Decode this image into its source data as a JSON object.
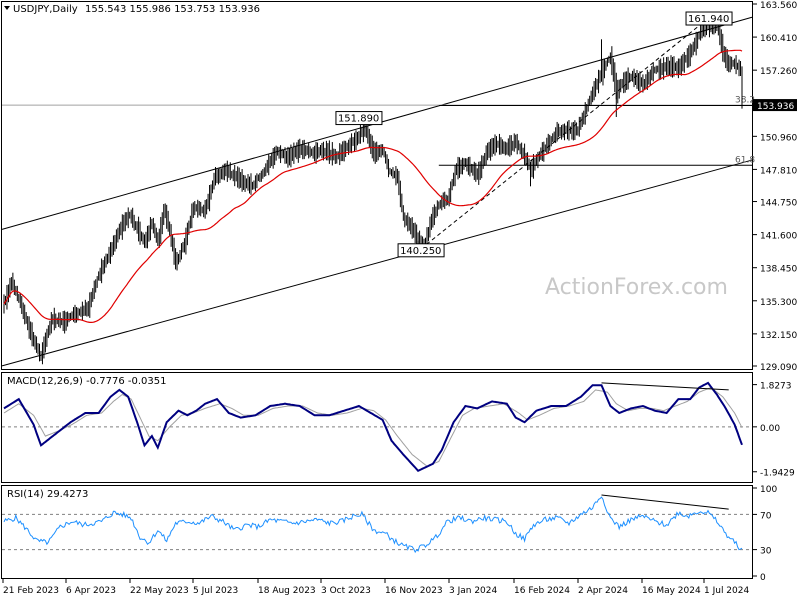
{
  "header": {
    "symbol": "USDJPY,Daily",
    "ohlc": "155.543 155.986 153.753 153.936"
  },
  "watermark": "ActionForex.com",
  "colors": {
    "price_bar": "#000000",
    "ma": "#e00000",
    "macd": "#000080",
    "macd_signal": "#a0a0a0",
    "rsi": "#1e90ff",
    "trend": "#000000",
    "grid_dotted": "#808080"
  },
  "chart_data": [
    {
      "type": "ohlc",
      "panel": "price",
      "title": "USDJPY,Daily",
      "y_ticks": [
        "163.560",
        "160.410",
        "157.260",
        "154.110",
        "150.960",
        "147.810",
        "144.750",
        "141.600",
        "138.450",
        "135.300",
        "132.150",
        "129.090"
      ],
      "y_tick_values": [
        163.56,
        160.41,
        157.26,
        154.11,
        150.96,
        147.81,
        144.75,
        141.6,
        138.45,
        135.3,
        132.15,
        129.09
      ],
      "ylim": [
        129.09,
        163.56
      ],
      "x_tick_labels": [
        "21 Feb 2023",
        "6 Apr 2023",
        "22 May 2023",
        "5 Jul 2023",
        "18 Aug 2023",
        "3 Oct 2023",
        "16 Nov 2023",
        "3 Jan 2024",
        "16 Feb 2024",
        "2 Apr 2024",
        "16 May 2024",
        "1 Jul 2024"
      ],
      "current_price_label": "153.936",
      "current_price": 153.936,
      "swing_labels": [
        {
          "text": "161.940",
          "value": 161.94
        },
        {
          "text": "151.890",
          "value": 151.89
        },
        {
          "text": "140.250",
          "value": 140.25
        }
      ],
      "fibonacci": [
        {
          "label": "38.2",
          "value": 153.9
        },
        {
          "label": "61.8",
          "value": 148.2
        }
      ],
      "close_anchors": [
        [
          0,
          135.0
        ],
        [
          5,
          137.2
        ],
        [
          10,
          135.4
        ],
        [
          20,
          131.5
        ],
        [
          25,
          130.0
        ],
        [
          32,
          133.5
        ],
        [
          40,
          133.3
        ],
        [
          50,
          134.2
        ],
        [
          57,
          134.7
        ],
        [
          64,
          137.8
        ],
        [
          72,
          140.0
        ],
        [
          80,
          142.6
        ],
        [
          85,
          143.5
        ],
        [
          95,
          140.8
        ],
        [
          100,
          142.8
        ],
        [
          104,
          140.8
        ],
        [
          108,
          144.0
        ],
        [
          112,
          142.0
        ],
        [
          116,
          138.8
        ],
        [
          122,
          140.8
        ],
        [
          128,
          144.2
        ],
        [
          136,
          143.9
        ],
        [
          142,
          147.0
        ],
        [
          150,
          147.8
        ],
        [
          160,
          146.7
        ],
        [
          168,
          146.3
        ],
        [
          176,
          147.7
        ],
        [
          184,
          149.5
        ],
        [
          192,
          149.0
        ],
        [
          200,
          149.8
        ],
        [
          208,
          149.4
        ],
        [
          216,
          149.6
        ],
        [
          224,
          149.0
        ],
        [
          232,
          149.9
        ],
        [
          240,
          151.0
        ],
        [
          244,
          151.7
        ],
        [
          250,
          149.3
        ],
        [
          256,
          149.8
        ],
        [
          260,
          147.8
        ],
        [
          266,
          147.0
        ],
        [
          270,
          143.2
        ],
        [
          276,
          142.1
        ],
        [
          280,
          141.0
        ],
        [
          284,
          140.5
        ],
        [
          290,
          143.5
        ],
        [
          296,
          144.8
        ],
        [
          300,
          145.0
        ],
        [
          306,
          148.0
        ],
        [
          312,
          148.4
        ],
        [
          320,
          147.2
        ],
        [
          326,
          149.4
        ],
        [
          332,
          150.3
        ],
        [
          340,
          149.8
        ],
        [
          346,
          150.4
        ],
        [
          352,
          149.0
        ],
        [
          356,
          147.9
        ],
        [
          362,
          149.1
        ],
        [
          368,
          150.3
        ],
        [
          374,
          151.4
        ],
        [
          380,
          151.5
        ],
        [
          388,
          151.6
        ],
        [
          396,
          154.4
        ],
        [
          404,
          157.0
        ],
        [
          410,
          158.6
        ],
        [
          414,
          155.2
        ],
        [
          418,
          156.0
        ],
        [
          424,
          156.6
        ],
        [
          432,
          155.9
        ],
        [
          440,
          157.3
        ],
        [
          448,
          157.6
        ],
        [
          456,
          157.5
        ],
        [
          464,
          158.9
        ],
        [
          470,
          160.6
        ],
        [
          474,
          161.7
        ],
        [
          478,
          161.2
        ],
        [
          482,
          161.6
        ],
        [
          486,
          159.0
        ],
        [
          490,
          157.8
        ],
        [
          494,
          158.0
        ],
        [
          498,
          157.3
        ],
        [
          499,
          153.936
        ]
      ]
    },
    {
      "type": "line",
      "panel": "macd",
      "title": "MACD(12,26,9) -0.7776 -0.0351",
      "y_ticks": [
        "1.8273",
        "0.00",
        "-1.9429"
      ],
      "y_tick_values": [
        1.8273,
        0.0,
        -1.9429
      ],
      "ylim": [
        -2.3,
        2.2
      ],
      "series": [
        {
          "name": "MACD",
          "values_anchor": [
            [
              0,
              0.8
            ],
            [
              10,
              1.2
            ],
            [
              20,
              0.1
            ],
            [
              25,
              -0.8
            ],
            [
              35,
              -0.3
            ],
            [
              45,
              0.2
            ],
            [
              55,
              0.6
            ],
            [
              64,
              0.6
            ],
            [
              72,
              1.3
            ],
            [
              78,
              1.6
            ],
            [
              84,
              1.3
            ],
            [
              90,
              0.2
            ],
            [
              95,
              -0.8
            ],
            [
              100,
              -0.4
            ],
            [
              104,
              -0.9
            ],
            [
              110,
              0.2
            ],
            [
              118,
              0.7
            ],
            [
              124,
              0.5
            ],
            [
              130,
              0.7
            ],
            [
              136,
              1.0
            ],
            [
              144,
              1.2
            ],
            [
              152,
              0.6
            ],
            [
              160,
              0.4
            ],
            [
              170,
              0.5
            ],
            [
              180,
              0.9
            ],
            [
              190,
              1.0
            ],
            [
              200,
              0.9
            ],
            [
              210,
              0.5
            ],
            [
              220,
              0.5
            ],
            [
              230,
              0.7
            ],
            [
              240,
              0.9
            ],
            [
              248,
              0.6
            ],
            [
              256,
              0.3
            ],
            [
              262,
              -0.6
            ],
            [
              270,
              -1.2
            ],
            [
              280,
              -1.9
            ],
            [
              290,
              -1.6
            ],
            [
              296,
              -1.0
            ],
            [
              304,
              0.2
            ],
            [
              312,
              0.9
            ],
            [
              320,
              0.8
            ],
            [
              330,
              1.1
            ],
            [
              340,
              1.0
            ],
            [
              346,
              0.4
            ],
            [
              352,
              0.2
            ],
            [
              360,
              0.7
            ],
            [
              370,
              0.9
            ],
            [
              380,
              0.9
            ],
            [
              390,
              1.3
            ],
            [
              398,
              1.8
            ],
            [
              404,
              1.8
            ],
            [
              410,
              0.9
            ],
            [
              416,
              0.6
            ],
            [
              424,
              0.8
            ],
            [
              432,
              0.9
            ],
            [
              440,
              0.7
            ],
            [
              448,
              0.6
            ],
            [
              456,
              1.2
            ],
            [
              464,
              1.2
            ],
            [
              470,
              1.7
            ],
            [
              476,
              1.9
            ],
            [
              482,
              1.4
            ],
            [
              488,
              0.8
            ],
            [
              494,
              0.1
            ],
            [
              499,
              -0.7776
            ]
          ]
        },
        {
          "name": "Signal",
          "values_anchor": [
            [
              0,
              0.6
            ],
            [
              10,
              1.0
            ],
            [
              20,
              0.5
            ],
            [
              28,
              -0.4
            ],
            [
              36,
              -0.2
            ],
            [
              46,
              0.1
            ],
            [
              56,
              0.5
            ],
            [
              66,
              0.6
            ],
            [
              74,
              1.1
            ],
            [
              80,
              1.4
            ],
            [
              86,
              1.2
            ],
            [
              92,
              0.4
            ],
            [
              98,
              -0.4
            ],
            [
              104,
              -0.6
            ],
            [
              112,
              0.0
            ],
            [
              120,
              0.5
            ],
            [
              128,
              0.6
            ],
            [
              136,
              0.8
            ],
            [
              146,
              1.0
            ],
            [
              154,
              0.8
            ],
            [
              162,
              0.5
            ],
            [
              172,
              0.5
            ],
            [
              182,
              0.8
            ],
            [
              192,
              0.9
            ],
            [
              202,
              0.9
            ],
            [
              212,
              0.6
            ],
            [
              222,
              0.5
            ],
            [
              232,
              0.6
            ],
            [
              242,
              0.8
            ],
            [
              250,
              0.7
            ],
            [
              258,
              0.3
            ],
            [
              266,
              -0.4
            ],
            [
              276,
              -1.2
            ],
            [
              286,
              -1.7
            ],
            [
              294,
              -1.5
            ],
            [
              302,
              -0.5
            ],
            [
              310,
              0.5
            ],
            [
              318,
              0.8
            ],
            [
              328,
              0.9
            ],
            [
              338,
              1.0
            ],
            [
              348,
              0.6
            ],
            [
              354,
              0.3
            ],
            [
              362,
              0.5
            ],
            [
              372,
              0.8
            ],
            [
              382,
              0.9
            ],
            [
              392,
              1.1
            ],
            [
              400,
              1.6
            ],
            [
              408,
              1.5
            ],
            [
              414,
              1.0
            ],
            [
              422,
              0.7
            ],
            [
              430,
              0.8
            ],
            [
              438,
              0.8
            ],
            [
              446,
              0.7
            ],
            [
              454,
              0.9
            ],
            [
              462,
              1.1
            ],
            [
              470,
              1.5
            ],
            [
              478,
              1.7
            ],
            [
              486,
              1.3
            ],
            [
              494,
              0.6
            ],
            [
              499,
              -0.0351
            ]
          ]
        }
      ]
    },
    {
      "type": "line",
      "panel": "rsi",
      "title": "RSI(14) 29.4273",
      "y_ticks": [
        "100",
        "70",
        "30",
        "0"
      ],
      "y_tick_values": [
        100,
        70,
        30,
        0
      ],
      "ylim": [
        0,
        100
      ],
      "series": [
        {
          "name": "RSI",
          "values_anchor": [
            [
              0,
              62
            ],
            [
              8,
              66
            ],
            [
              16,
              52
            ],
            [
              22,
              40
            ],
            [
              30,
              38
            ],
            [
              38,
              56
            ],
            [
              46,
              62
            ],
            [
              54,
              58
            ],
            [
              60,
              60
            ],
            [
              66,
              62
            ],
            [
              74,
              72
            ],
            [
              80,
              70
            ],
            [
              86,
              66
            ],
            [
              92,
              44
            ],
            [
              98,
              38
            ],
            [
              104,
              52
            ],
            [
              110,
              40
            ],
            [
              116,
              60
            ],
            [
              124,
              62
            ],
            [
              132,
              60
            ],
            [
              140,
              68
            ],
            [
              148,
              62
            ],
            [
              156,
              52
            ],
            [
              164,
              58
            ],
            [
              172,
              56
            ],
            [
              180,
              64
            ],
            [
              188,
              62
            ],
            [
              196,
              60
            ],
            [
              204,
              62
            ],
            [
              212,
              64
            ],
            [
              220,
              60
            ],
            [
              228,
              62
            ],
            [
              236,
              68
            ],
            [
              242,
              70
            ],
            [
              250,
              52
            ],
            [
              258,
              48
            ],
            [
              264,
              40
            ],
            [
              270,
              34
            ],
            [
              278,
              30
            ],
            [
              284,
              34
            ],
            [
              292,
              44
            ],
            [
              300,
              62
            ],
            [
              308,
              66
            ],
            [
              316,
              62
            ],
            [
              324,
              66
            ],
            [
              332,
              64
            ],
            [
              340,
              62
            ],
            [
              346,
              48
            ],
            [
              352,
              42
            ],
            [
              358,
              58
            ],
            [
              366,
              64
            ],
            [
              374,
              66
            ],
            [
              382,
              60
            ],
            [
              390,
              70
            ],
            [
              398,
              78
            ],
            [
              404,
              92
            ],
            [
              410,
              66
            ],
            [
              416,
              56
            ],
            [
              424,
              64
            ],
            [
              432,
              68
            ],
            [
              440,
              62
            ],
            [
              448,
              58
            ],
            [
              456,
              72
            ],
            [
              462,
              68
            ],
            [
              470,
              74
            ],
            [
              476,
              72
            ],
            [
              482,
              62
            ],
            [
              488,
              48
            ],
            [
              494,
              38
            ],
            [
              499,
              29.4273
            ]
          ]
        }
      ]
    }
  ]
}
